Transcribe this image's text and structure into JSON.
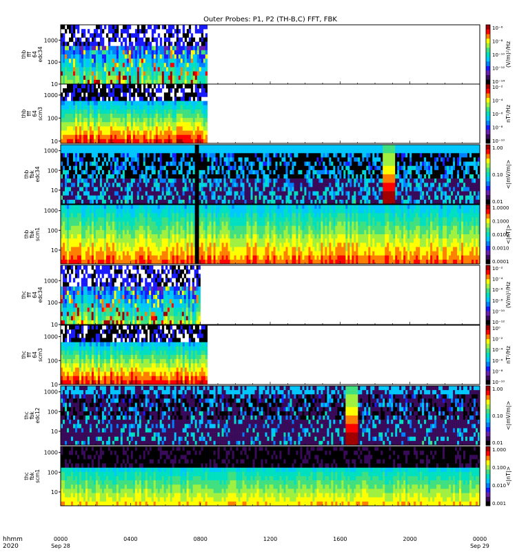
{
  "title": "Outer Probes: P1, P2 (TH-B,C) FFT, FBK",
  "chart_data": {
    "type": "heatmap",
    "title": "Outer Probes: P1, P2 (TH-B,C) FFT, FBK",
    "x_axis": {
      "corner_label_1": "hhmm",
      "corner_label_2": "2020",
      "ticks": [
        {
          "time": "0000",
          "sub": "Sep 28",
          "hour": 0
        },
        {
          "time": "0400",
          "sub": "",
          "hour": 4
        },
        {
          "time": "0800",
          "sub": "",
          "hour": 8
        },
        {
          "time": "1200",
          "sub": "",
          "hour": 12
        },
        {
          "time": "1600",
          "sub": "",
          "hour": 16
        },
        {
          "time": "2000",
          "sub": "",
          "hour": 20
        },
        {
          "time": "0000",
          "sub": "Sep 29",
          "hour": 24
        }
      ],
      "range_hours": [
        0,
        24
      ]
    },
    "panels": [
      {
        "ylabel": [
          "thb",
          "fff",
          "64",
          "edc34"
        ],
        "yscale": "log",
        "yrange": [
          10,
          5000
        ],
        "yticks": [
          "1000",
          "100",
          "10"
        ],
        "data_end_hour": 8.4,
        "kind": "fff_e",
        "colorbar": {
          "unit": "(V/m)²/Hz",
          "ticks": [
            "10⁻⁶",
            "10⁻⁸",
            "10⁻¹⁰",
            "10⁻¹²",
            "10⁻¹⁴"
          ]
        }
      },
      {
        "ylabel": [
          "thb",
          "fff",
          "64",
          "scm3"
        ],
        "yscale": "log",
        "yrange": [
          8,
          3000
        ],
        "yticks": [
          "1000",
          "100",
          "10"
        ],
        "data_end_hour": 8.4,
        "kind": "fff_b",
        "colorbar": {
          "unit": "nT²/Hz",
          "ticks": [
            "10⁻²",
            "10⁻⁴",
            "10⁻⁶",
            "10⁻⁸",
            "10⁻¹⁰"
          ]
        }
      },
      {
        "ylabel": [
          "thb",
          "fbk",
          "edc34"
        ],
        "yscale": "log",
        "yrange": [
          2,
          2000
        ],
        "yticks": [
          "1000",
          "100",
          "10"
        ],
        "data_end_hour": 24,
        "kind": "fbk_e",
        "gap_hour": 7.8,
        "event_hour": 18.7,
        "colorbar": {
          "unit": "<|mV/m|>",
          "ticks": [
            "1.00",
            "0.10",
            "0.01"
          ]
        }
      },
      {
        "ylabel": [
          "thb",
          "fbk",
          "scm1"
        ],
        "yscale": "log",
        "yrange": [
          2,
          2000
        ],
        "yticks": [
          "1000",
          "100",
          "10"
        ],
        "data_end_hour": 24,
        "kind": "fbk_b",
        "gap_hour": 7.8,
        "colorbar": {
          "unit": "<|nT|>",
          "ticks": [
            "1.0000",
            "0.1000",
            "0.0100",
            "0.0010",
            "0.0001"
          ]
        }
      },
      {
        "ylabel": [
          "thc",
          "fff",
          "64",
          "edc34"
        ],
        "yscale": "log",
        "yrange": [
          10,
          5000
        ],
        "yticks": [
          "1000",
          "100",
          "10"
        ],
        "data_end_hour": 8.0,
        "kind": "fff_e",
        "colorbar": {
          "unit": "(V/m)²/Hz",
          "ticks": [
            "10⁻²",
            "10⁻⁴",
            "10⁻⁶",
            "10⁻⁸",
            "10⁻¹⁰",
            "10⁻¹²"
          ]
        }
      },
      {
        "ylabel": [
          "thc",
          "fff",
          "64",
          "scm3"
        ],
        "yscale": "log",
        "yrange": [
          10,
          3000
        ],
        "yticks": [
          "1000",
          "100",
          "10"
        ],
        "data_end_hour": 8.4,
        "kind": "fff_b",
        "colorbar": {
          "unit": "nT²/Hz",
          "ticks": [
            "10⁰",
            "10⁻²",
            "10⁻⁴",
            "10⁻⁶",
            "10⁻⁸",
            "10⁻¹⁰"
          ]
        }
      },
      {
        "ylabel": [
          "thc",
          "fbk",
          "edc12"
        ],
        "yscale": "log",
        "yrange": [
          2,
          2000
        ],
        "yticks": [
          "1000",
          "100",
          "10"
        ],
        "data_end_hour": 24,
        "kind": "fbk_e2",
        "event_hour": 16.6,
        "colorbar": {
          "unit": "<|mV/m|>",
          "ticks": [
            "1.00",
            "0.10",
            "0.01"
          ]
        }
      },
      {
        "ylabel": [
          "thc",
          "fbk",
          "scm1"
        ],
        "yscale": "log",
        "yrange": [
          2,
          2000
        ],
        "yticks": [
          "1000",
          "100",
          "10"
        ],
        "data_end_hour": 24,
        "kind": "fbk_b2",
        "colorbar": {
          "unit": "<|nT|>",
          "ticks": [
            "1.000",
            "0.100",
            "0.010",
            "0.001"
          ]
        }
      }
    ],
    "colormap": [
      "#000000",
      "#3a0a5a",
      "#6a1fb0",
      "#1a1aff",
      "#007fff",
      "#00c8ff",
      "#00e0c0",
      "#40e080",
      "#a0f040",
      "#ffff00",
      "#ff8000",
      "#ff0000",
      "#a00000"
    ],
    "grid": false,
    "legend": "colorbars-right"
  }
}
